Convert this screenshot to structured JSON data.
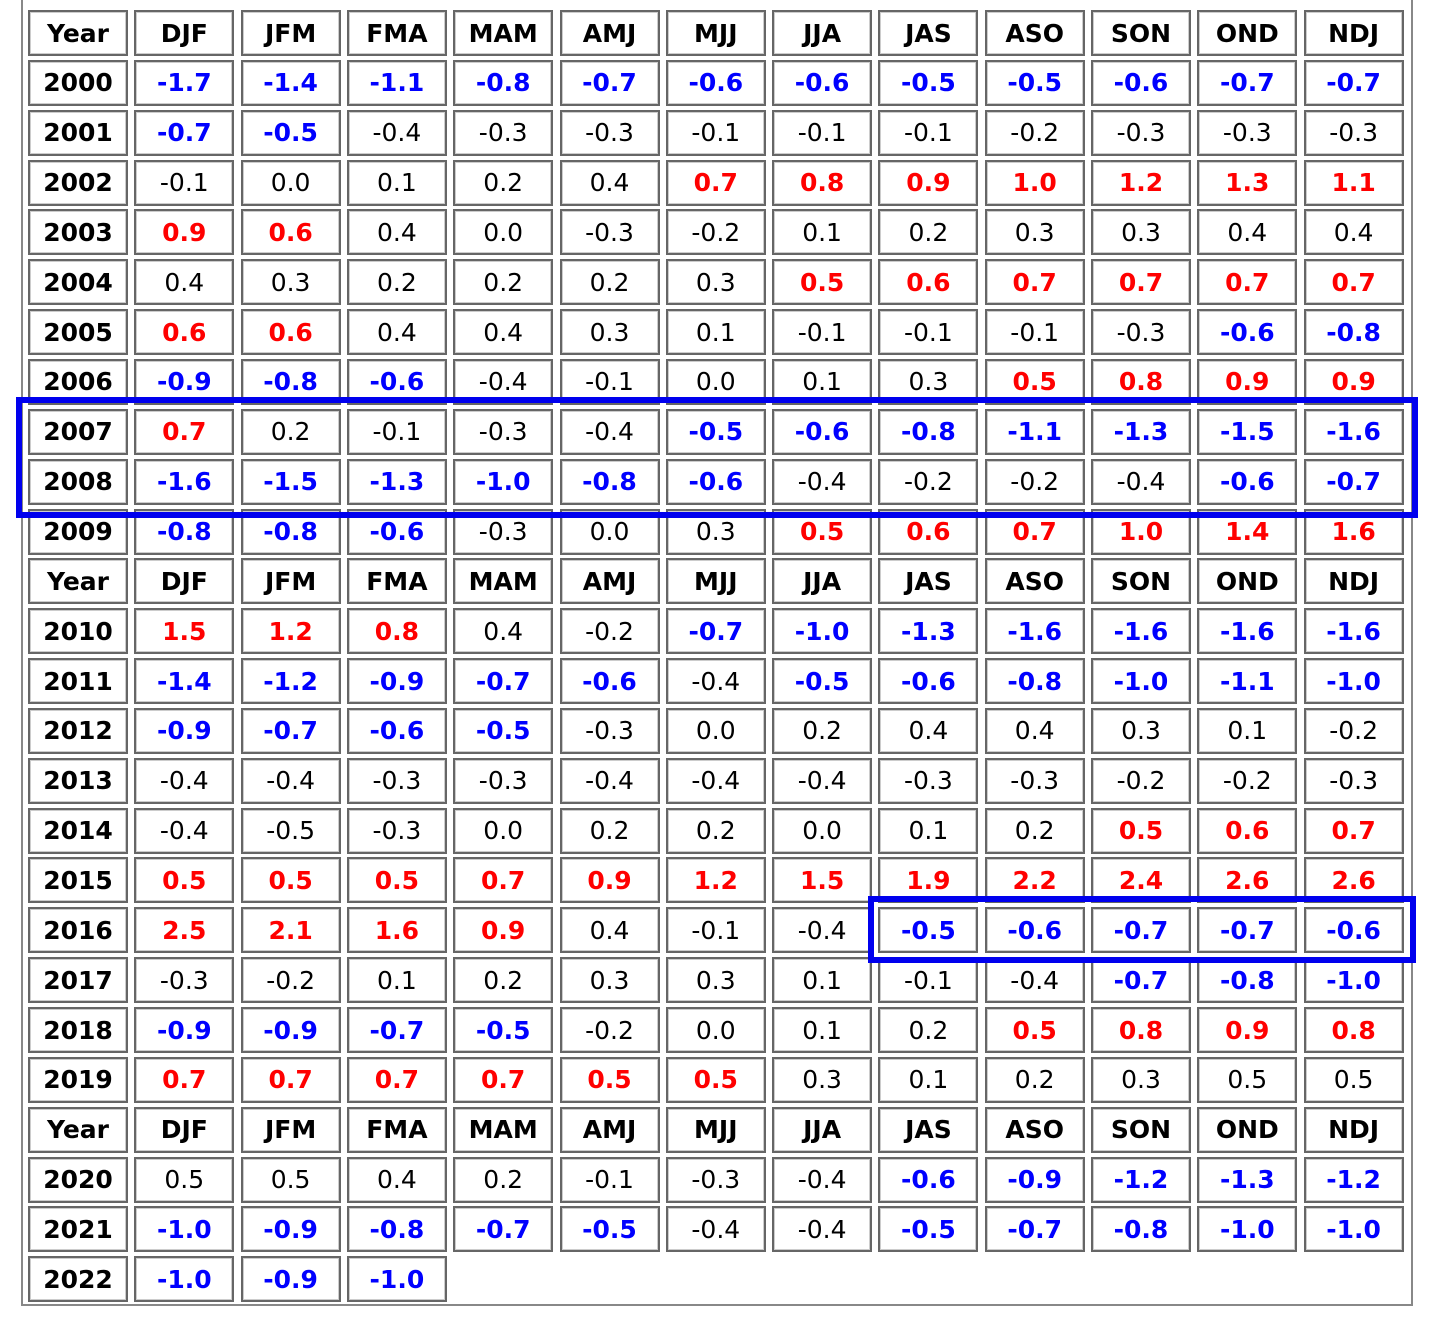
{
  "sections": [
    {
      "header": [
        "Year",
        "DJF",
        "JFM",
        "FMA",
        "MAM",
        "AMJ",
        "MJJ",
        "JJA",
        "JAS",
        "ASO",
        "SON",
        "OND",
        "NDJ"
      ],
      "rows": [
        {
          "year": 2000,
          "values": [
            "-1.7",
            "-1.4",
            "-1.1",
            "-0.8",
            "-0.7",
            "-0.6",
            "-0.6",
            "-0.5",
            "-0.5",
            "-0.6",
            "-0.7",
            "-0.7"
          ],
          "colors": [
            "blue",
            "blue",
            "blue",
            "blue",
            "blue",
            "blue",
            "blue",
            "blue",
            "blue",
            "blue",
            "blue",
            "blue"
          ]
        },
        {
          "year": 2001,
          "values": [
            "-0.7",
            "-0.5",
            "-0.4",
            "-0.3",
            "-0.3",
            "-0.1",
            "-0.1",
            "-0.1",
            "-0.2",
            "-0.3",
            "-0.3",
            "-0.3"
          ],
          "colors": [
            "blue",
            "blue",
            "black",
            "black",
            "black",
            "black",
            "black",
            "black",
            "black",
            "black",
            "black",
            "black"
          ]
        },
        {
          "year": 2002,
          "values": [
            "-0.1",
            "0.0",
            "0.1",
            "0.2",
            "0.4",
            "0.7",
            "0.8",
            "0.9",
            "1.0",
            "1.2",
            "1.3",
            "1.1"
          ],
          "colors": [
            "black",
            "black",
            "black",
            "black",
            "black",
            "red",
            "red",
            "red",
            "red",
            "red",
            "red",
            "red"
          ]
        },
        {
          "year": 2003,
          "values": [
            "0.9",
            "0.6",
            "0.4",
            "0.0",
            "-0.3",
            "-0.2",
            "0.1",
            "0.2",
            "0.3",
            "0.3",
            "0.4",
            "0.4"
          ],
          "colors": [
            "red",
            "red",
            "black",
            "black",
            "black",
            "black",
            "black",
            "black",
            "black",
            "black",
            "black",
            "black"
          ]
        },
        {
          "year": 2004,
          "values": [
            "0.4",
            "0.3",
            "0.2",
            "0.2",
            "0.2",
            "0.3",
            "0.5",
            "0.6",
            "0.7",
            "0.7",
            "0.7",
            "0.7"
          ],
          "colors": [
            "black",
            "black",
            "black",
            "black",
            "black",
            "black",
            "red",
            "red",
            "red",
            "red",
            "red",
            "red"
          ]
        },
        {
          "year": 2005,
          "values": [
            "0.6",
            "0.6",
            "0.4",
            "0.4",
            "0.3",
            "0.1",
            "-0.1",
            "-0.1",
            "-0.1",
            "-0.3",
            "-0.6",
            "-0.8"
          ],
          "colors": [
            "red",
            "red",
            "black",
            "black",
            "black",
            "black",
            "black",
            "black",
            "black",
            "black",
            "blue",
            "blue"
          ]
        },
        {
          "year": 2006,
          "values": [
            "-0.9",
            "-0.8",
            "-0.6",
            "-0.4",
            "-0.1",
            "0.0",
            "0.1",
            "0.3",
            "0.5",
            "0.8",
            "0.9",
            "0.9"
          ],
          "colors": [
            "blue",
            "blue",
            "blue",
            "black",
            "black",
            "black",
            "black",
            "black",
            "red",
            "red",
            "red",
            "red"
          ]
        },
        {
          "year": 2007,
          "values": [
            "0.7",
            "0.2",
            "-0.1",
            "-0.3",
            "-0.4",
            "-0.5",
            "-0.6",
            "-0.8",
            "-1.1",
            "-1.3",
            "-1.5",
            "-1.6"
          ],
          "colors": [
            "red",
            "black",
            "black",
            "black",
            "black",
            "blue",
            "blue",
            "blue",
            "blue",
            "blue",
            "blue",
            "blue"
          ]
        },
        {
          "year": 2008,
          "values": [
            "-1.6",
            "-1.5",
            "-1.3",
            "-1.0",
            "-0.8",
            "-0.6",
            "-0.4",
            "-0.2",
            "-0.2",
            "-0.4",
            "-0.6",
            "-0.7"
          ],
          "colors": [
            "blue",
            "blue",
            "blue",
            "blue",
            "blue",
            "blue",
            "black",
            "black",
            "black",
            "black",
            "blue",
            "blue"
          ]
        },
        {
          "year": 2009,
          "values": [
            "-0.8",
            "-0.8",
            "-0.6",
            "-0.3",
            "0.0",
            "0.3",
            "0.5",
            "0.6",
            "0.7",
            "1.0",
            "1.4",
            "1.6"
          ],
          "colors": [
            "blue",
            "blue",
            "blue",
            "black",
            "black",
            "black",
            "red",
            "red",
            "red",
            "red",
            "red",
            "red"
          ]
        }
      ]
    },
    {
      "header": [
        "Year",
        "DJF",
        "JFM",
        "FMA",
        "MAM",
        "AMJ",
        "MJJ",
        "JJA",
        "JAS",
        "ASO",
        "SON",
        "OND",
        "NDJ"
      ],
      "rows": [
        {
          "year": 2010,
          "values": [
            "1.5",
            "1.2",
            "0.8",
            "0.4",
            "-0.2",
            "-0.7",
            "-1.0",
            "-1.3",
            "-1.6",
            "-1.6",
            "-1.6",
            "-1.6"
          ],
          "colors": [
            "red",
            "red",
            "red",
            "black",
            "black",
            "blue",
            "blue",
            "blue",
            "blue",
            "blue",
            "blue",
            "blue"
          ]
        },
        {
          "year": 2011,
          "values": [
            "-1.4",
            "-1.2",
            "-0.9",
            "-0.7",
            "-0.6",
            "-0.4",
            "-0.5",
            "-0.6",
            "-0.8",
            "-1.0",
            "-1.1",
            "-1.0"
          ],
          "colors": [
            "blue",
            "blue",
            "blue",
            "blue",
            "blue",
            "black",
            "blue",
            "blue",
            "blue",
            "blue",
            "blue",
            "blue"
          ]
        },
        {
          "year": 2012,
          "values": [
            "-0.9",
            "-0.7",
            "-0.6",
            "-0.5",
            "-0.3",
            "0.0",
            "0.2",
            "0.4",
            "0.4",
            "0.3",
            "0.1",
            "-0.2"
          ],
          "colors": [
            "blue",
            "blue",
            "blue",
            "blue",
            "black",
            "black",
            "black",
            "black",
            "black",
            "black",
            "black",
            "black"
          ]
        },
        {
          "year": 2013,
          "values": [
            "-0.4",
            "-0.4",
            "-0.3",
            "-0.3",
            "-0.4",
            "-0.4",
            "-0.4",
            "-0.3",
            "-0.3",
            "-0.2",
            "-0.2",
            "-0.3"
          ],
          "colors": [
            "black",
            "black",
            "black",
            "black",
            "black",
            "black",
            "black",
            "black",
            "black",
            "black",
            "black",
            "black"
          ]
        },
        {
          "year": 2014,
          "values": [
            "-0.4",
            "-0.5",
            "-0.3",
            "0.0",
            "0.2",
            "0.2",
            "0.0",
            "0.1",
            "0.2",
            "0.5",
            "0.6",
            "0.7"
          ],
          "colors": [
            "black",
            "black",
            "black",
            "black",
            "black",
            "black",
            "black",
            "black",
            "black",
            "red",
            "red",
            "red"
          ]
        },
        {
          "year": 2015,
          "values": [
            "0.5",
            "0.5",
            "0.5",
            "0.7",
            "0.9",
            "1.2",
            "1.5",
            "1.9",
            "2.2",
            "2.4",
            "2.6",
            "2.6"
          ],
          "colors": [
            "red",
            "red",
            "red",
            "red",
            "red",
            "red",
            "red",
            "red",
            "red",
            "red",
            "red",
            "red"
          ]
        },
        {
          "year": 2016,
          "values": [
            "2.5",
            "2.1",
            "1.6",
            "0.9",
            "0.4",
            "-0.1",
            "-0.4",
            "-0.5",
            "-0.6",
            "-0.7",
            "-0.7",
            "-0.6"
          ],
          "colors": [
            "red",
            "red",
            "red",
            "red",
            "black",
            "black",
            "black",
            "blue",
            "blue",
            "blue",
            "blue",
            "blue"
          ]
        },
        {
          "year": 2017,
          "values": [
            "-0.3",
            "-0.2",
            "0.1",
            "0.2",
            "0.3",
            "0.3",
            "0.1",
            "-0.1",
            "-0.4",
            "-0.7",
            "-0.8",
            "-1.0"
          ],
          "colors": [
            "black",
            "black",
            "black",
            "black",
            "black",
            "black",
            "black",
            "black",
            "black",
            "blue",
            "blue",
            "blue"
          ]
        },
        {
          "year": 2018,
          "values": [
            "-0.9",
            "-0.9",
            "-0.7",
            "-0.5",
            "-0.2",
            "0.0",
            "0.1",
            "0.2",
            "0.5",
            "0.8",
            "0.9",
            "0.8"
          ],
          "colors": [
            "blue",
            "blue",
            "blue",
            "blue",
            "black",
            "black",
            "black",
            "black",
            "red",
            "red",
            "red",
            "red"
          ]
        },
        {
          "year": 2019,
          "values": [
            "0.7",
            "0.7",
            "0.7",
            "0.7",
            "0.5",
            "0.5",
            "0.3",
            "0.1",
            "0.2",
            "0.3",
            "0.5",
            "0.5"
          ],
          "colors": [
            "red",
            "red",
            "red",
            "red",
            "red",
            "red",
            "black",
            "black",
            "black",
            "black",
            "black",
            "black"
          ]
        }
      ]
    },
    {
      "header": [
        "Year",
        "DJF",
        "JFM",
        "FMA",
        "MAM",
        "AMJ",
        "MJJ",
        "JJA",
        "JAS",
        "ASO",
        "SON",
        "OND",
        "NDJ"
      ],
      "rows": [
        {
          "year": 2020,
          "values": [
            "0.5",
            "0.5",
            "0.4",
            "0.2",
            "-0.1",
            "-0.3",
            "-0.4",
            "-0.6",
            "-0.9",
            "-1.2",
            "-1.3",
            "-1.2"
          ],
          "colors": [
            "black",
            "black",
            "black",
            "black",
            "black",
            "black",
            "black",
            "blue",
            "blue",
            "blue",
            "blue",
            "blue"
          ]
        },
        {
          "year": 2021,
          "values": [
            "-1.0",
            "-0.9",
            "-0.8",
            "-0.7",
            "-0.5",
            "-0.4",
            "-0.4",
            "-0.5",
            "-0.7",
            "-0.8",
            "-1.0",
            "-1.0"
          ],
          "colors": [
            "blue",
            "blue",
            "blue",
            "blue",
            "blue",
            "black",
            "black",
            "blue",
            "blue",
            "blue",
            "blue",
            "blue"
          ]
        },
        {
          "year": 2022,
          "values": [
            "-1.0",
            "-0.9",
            "-1.0"
          ],
          "colors": [
            "blue",
            "blue",
            "blue"
          ]
        }
      ]
    }
  ]
}
